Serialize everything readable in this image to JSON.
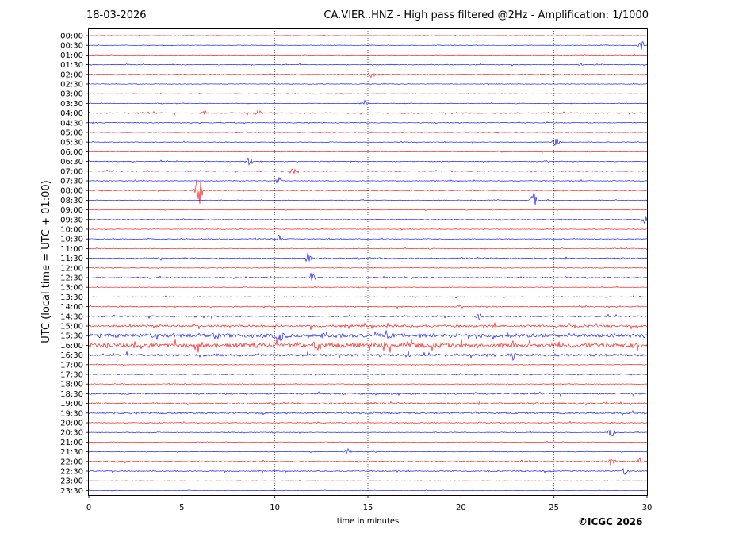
{
  "header": {
    "date": "18-03-2026",
    "title": "CA.VIER..HNZ - High pass filtered @2Hz - Amplification: 1/1000"
  },
  "footer": {
    "copyright": "©ICGC 2026"
  },
  "colors": {
    "trace_a": "#ff0000",
    "trace_b": "#0000ff",
    "frame": "#000000",
    "gridline": "#000000"
  },
  "chart_data": {
    "type": "line",
    "chart_kind": "helicorder",
    "xlabel": "time in minutes",
    "ylabel": "UTC (local time = UTC + 01:00)",
    "xlim": [
      0,
      30
    ],
    "x_ticks": [
      0,
      5,
      10,
      15,
      20,
      25,
      30
    ],
    "vertical_grid_minutes": [
      5,
      10,
      15,
      20,
      25
    ],
    "grid_style": "dotted vertical",
    "row_labels": [
      "00:00",
      "00:30",
      "01:00",
      "01:30",
      "02:00",
      "02:30",
      "03:00",
      "03:30",
      "04:00",
      "04:30",
      "05:00",
      "05:30",
      "06:00",
      "06:30",
      "07:00",
      "07:30",
      "08:00",
      "08:30",
      "09:00",
      "09:30",
      "10:00",
      "10:30",
      "11:00",
      "11:30",
      "12:00",
      "12:30",
      "13:00",
      "13:30",
      "14:00",
      "14:30",
      "15:00",
      "15:30",
      "16:00",
      "16:30",
      "17:00",
      "17:30",
      "18:00",
      "18:30",
      "19:00",
      "19:30",
      "20:00",
      "20:30",
      "21:00",
      "21:30",
      "22:00",
      "22:30",
      "23:00",
      "23:30"
    ],
    "row_colors_cycle": [
      "red",
      "blue"
    ],
    "noise_level_by_row": [
      0.1,
      0.12,
      0.15,
      0.2,
      0.18,
      0.15,
      0.12,
      0.15,
      0.3,
      0.2,
      0.15,
      0.15,
      0.15,
      0.2,
      0.25,
      0.18,
      0.2,
      0.15,
      0.12,
      0.18,
      0.15,
      0.2,
      0.18,
      0.3,
      0.15,
      0.25,
      0.15,
      0.2,
      0.25,
      0.35,
      0.55,
      1.0,
      1.1,
      0.6,
      0.15,
      0.2,
      0.15,
      0.35,
      0.4,
      0.4,
      0.2,
      0.15,
      0.15,
      0.12,
      0.25,
      0.25,
      0.1,
      0.08
    ],
    "events": [
      {
        "row": "00:30",
        "minute": 29.7,
        "amplitude": 0.7
      },
      {
        "row": "02:00",
        "minute": 15.2,
        "amplitude": 0.5
      },
      {
        "row": "03:30",
        "minute": 14.8,
        "amplitude": 0.5
      },
      {
        "row": "04:00",
        "minute": 6.2,
        "amplitude": 0.4
      },
      {
        "row": "04:00",
        "minute": 9.1,
        "amplitude": 0.5
      },
      {
        "row": "05:30",
        "minute": 25.1,
        "amplitude": 0.8
      },
      {
        "row": "06:30",
        "minute": 8.6,
        "amplitude": 0.9
      },
      {
        "row": "07:00",
        "minute": 11.0,
        "amplitude": 0.4
      },
      {
        "row": "07:30",
        "minute": 10.2,
        "amplitude": 0.6
      },
      {
        "row": "08:00",
        "minute": 5.9,
        "amplitude": 3.0
      },
      {
        "row": "08:30",
        "minute": 23.9,
        "amplitude": 1.1
      },
      {
        "row": "09:30",
        "minute": 29.9,
        "amplitude": 0.8
      },
      {
        "row": "10:30",
        "minute": 10.2,
        "amplitude": 0.7
      },
      {
        "row": "11:30",
        "minute": 11.8,
        "amplitude": 1.0
      },
      {
        "row": "12:30",
        "minute": 12.0,
        "amplitude": 1.0
      },
      {
        "row": "14:30",
        "minute": 21.0,
        "amplitude": 0.5
      },
      {
        "row": "15:30",
        "minute": 10.3,
        "amplitude": 0.8
      },
      {
        "row": "16:00",
        "minute": 12.3,
        "amplitude": 0.7
      },
      {
        "row": "16:30",
        "minute": 22.8,
        "amplitude": 0.6
      },
      {
        "row": "20:30",
        "minute": 28.1,
        "amplitude": 0.9
      },
      {
        "row": "21:30",
        "minute": 13.9,
        "amplitude": 0.5
      },
      {
        "row": "22:00",
        "minute": 28.1,
        "amplitude": 0.7
      },
      {
        "row": "22:00",
        "minute": 29.6,
        "amplitude": 0.5
      },
      {
        "row": "22:30",
        "minute": 28.8,
        "amplitude": 0.5
      }
    ]
  }
}
